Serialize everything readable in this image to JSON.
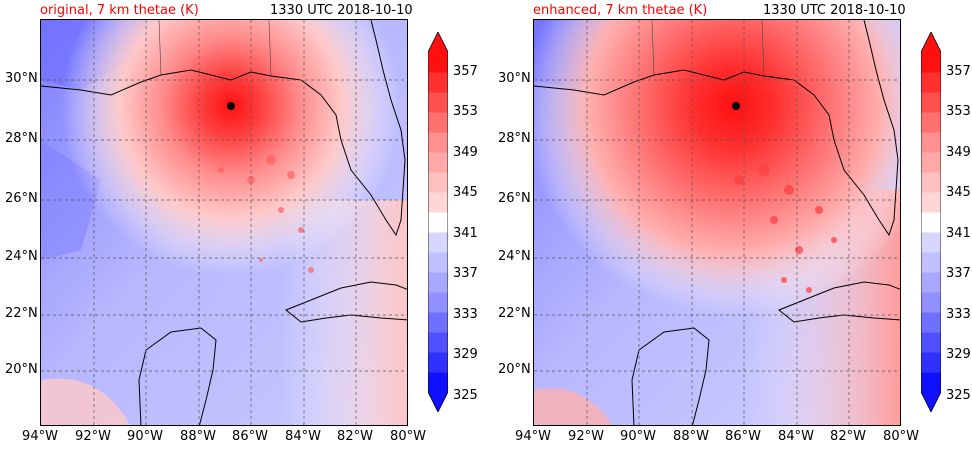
{
  "panels": [
    {
      "title": "original, 7 km thetae (K)",
      "timestamp": "1330 UTC 2018-10-10",
      "variant": "original"
    },
    {
      "title": "enhanced, 7 km thetae (K)",
      "timestamp": "1330 UTC 2018-10-10",
      "variant": "enhanced"
    }
  ],
  "map": {
    "lat_labels": [
      "30°N",
      "28°N",
      "26°N",
      "24°N",
      "22°N",
      "20°N"
    ],
    "lon_labels": [
      "94°W",
      "92°W",
      "90°W",
      "88°W",
      "86°W",
      "84°W",
      "82°W",
      "80°W"
    ],
    "storm_marker": "hurricane-center"
  },
  "colorbar": {
    "labels": [
      "357",
      "353",
      "349",
      "345",
      "341",
      "337",
      "333",
      "329",
      "325"
    ],
    "min": 325,
    "max": 359,
    "step": 2,
    "colors": [
      "#1010ff",
      "#3030ff",
      "#5050ff",
      "#7070ff",
      "#9090ff",
      "#a8a8ff",
      "#c0c0ff",
      "#d6d6ff",
      "#ffffff",
      "#ffd6d6",
      "#ffc0c0",
      "#ffa8a8",
      "#ff9090",
      "#ff7070",
      "#ff5050",
      "#ff3030",
      "#ff1010"
    ],
    "accent_title_color": "#ff0000"
  }
}
